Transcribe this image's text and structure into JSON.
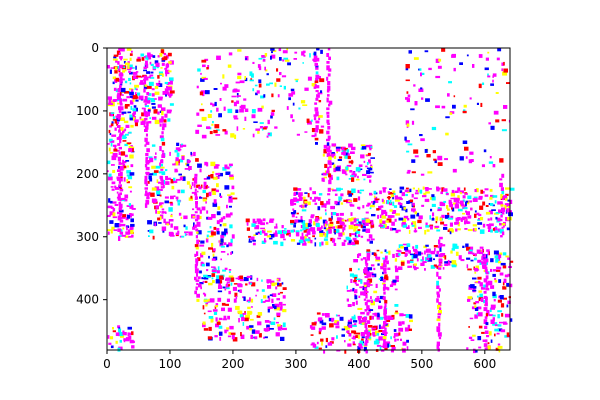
{
  "plot": {
    "image_kind": "noisy-rgb-edge-image",
    "palette": {
      "background": "#ffffff",
      "magenta": "#ff00ff",
      "cyan": "#00ffff",
      "yellow": "#ffff00",
      "red": "#ff0000",
      "blue": "#0000ff",
      "axis": "#000000"
    },
    "x_axis": {
      "range": [
        0,
        640
      ],
      "ticks": [
        0,
        100,
        200,
        300,
        400,
        500,
        600
      ]
    },
    "y_axis": {
      "range": [
        0,
        480
      ],
      "inverted": true,
      "ticks": [
        0,
        100,
        200,
        300,
        400
      ]
    }
  }
}
